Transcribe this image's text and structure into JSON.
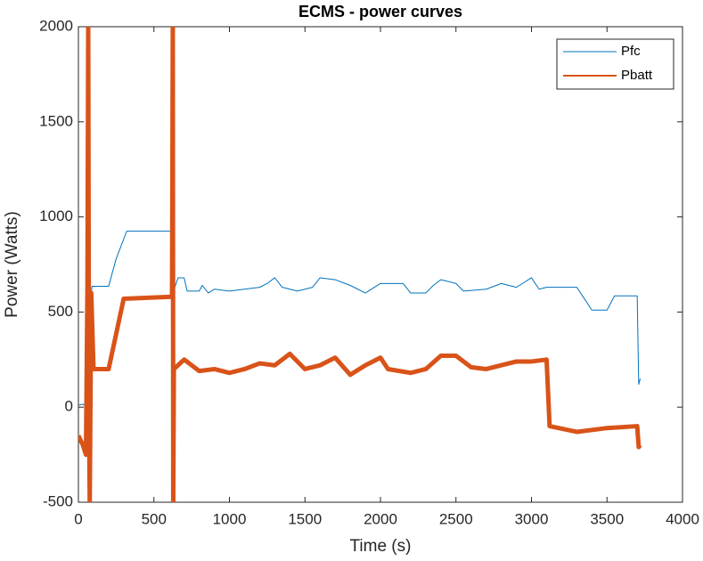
{
  "chart_data": {
    "type": "line",
    "title": "ECMS - power curves",
    "xlabel": "Time (s)",
    "ylabel": "Power (Watts)",
    "xlim": [
      0,
      4000
    ],
    "xticks": [
      0,
      500,
      1000,
      1500,
      2000,
      2500,
      3000,
      3500,
      4000
    ],
    "ylim": [
      -500,
      2000
    ],
    "yticks": [
      -500,
      0,
      500,
      1000,
      1500,
      2000
    ],
    "legend": "upper right",
    "series": [
      {
        "name": "Pfc",
        "color": "#0072BD",
        "width": 1,
        "x": [
          0,
          30,
          60,
          75,
          90,
          200,
          250,
          320,
          620,
          625,
          660,
          700,
          720,
          800,
          820,
          860,
          900,
          1000,
          1100,
          1200,
          1250,
          1300,
          1350,
          1450,
          1550,
          1600,
          1700,
          1800,
          1900,
          2000,
          2150,
          2200,
          2300,
          2350,
          2400,
          2500,
          2550,
          2700,
          2800,
          2900,
          3000,
          3050,
          3100,
          3300,
          3350,
          3400,
          3500,
          3550,
          3700,
          3710,
          3720
        ],
        "values": [
          10,
          15,
          5,
          520,
          635,
          635,
          780,
          925,
          925,
          600,
          680,
          680,
          610,
          610,
          640,
          600,
          620,
          610,
          620,
          630,
          650,
          680,
          630,
          610,
          630,
          680,
          670,
          640,
          600,
          650,
          650,
          600,
          600,
          640,
          670,
          650,
          610,
          620,
          650,
          630,
          680,
          620,
          630,
          630,
          570,
          510,
          510,
          585,
          585,
          120,
          150
        ]
      },
      {
        "name": "Pbatt",
        "color": "#D95319",
        "width": 5,
        "x": [
          0,
          30,
          50,
          60,
          65,
          70,
          75,
          85,
          100,
          200,
          300,
          620,
          625,
          628,
          632,
          700,
          800,
          900,
          1000,
          1100,
          1200,
          1300,
          1400,
          1500,
          1600,
          1700,
          1800,
          1900,
          2000,
          2050,
          2200,
          2300,
          2400,
          2500,
          2600,
          2700,
          2800,
          2900,
          3000,
          3100,
          3120,
          3300,
          3500,
          3700,
          3710,
          3720
        ],
        "values": [
          -150,
          -200,
          -250,
          650,
          2000,
          0,
          -500,
          600,
          200,
          200,
          570,
          580,
          2000,
          -500,
          200,
          250,
          190,
          200,
          180,
          200,
          230,
          220,
          280,
          200,
          220,
          260,
          170,
          220,
          260,
          200,
          180,
          200,
          270,
          270,
          210,
          200,
          220,
          240,
          240,
          250,
          -100,
          -130,
          -110,
          -100,
          -210,
          -200
        ]
      }
    ]
  }
}
